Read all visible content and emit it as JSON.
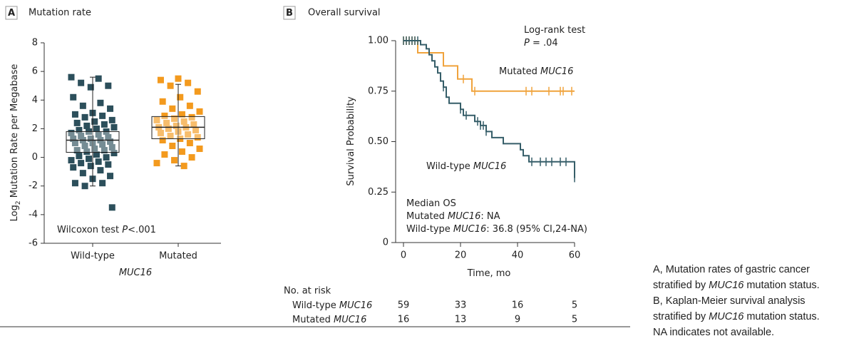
{
  "chart_data": [
    {
      "type": "box-strip",
      "panel": "A",
      "title": "Mutation rate",
      "ylabel": [
        {
          "text": "Log"
        },
        {
          "text": "2",
          "sub": true
        },
        {
          "text": " Mutation Rate per Megabase"
        }
      ],
      "xlabel": [
        {
          "text": "MUC16",
          "italic": true
        }
      ],
      "annotation": [
        {
          "text": "Wilcoxon test "
        },
        {
          "text": "P",
          "italic": true
        },
        {
          "text": "<.001"
        }
      ],
      "categories": [
        "Wild-type",
        "Mutated"
      ],
      "ylim": [
        -6,
        8
      ],
      "yticks": [
        -6,
        -4,
        -2,
        0,
        2,
        4,
        6,
        8
      ],
      "series": [
        {
          "name": "Wild-type",
          "color": "#2c4f5b",
          "values": [
            5.6,
            5.5,
            5.2,
            5.0,
            4.9,
            4.2,
            3.8,
            3.6,
            3.4,
            3.1,
            3.0,
            2.9,
            2.8,
            2.6,
            2.5,
            2.4,
            2.3,
            2.2,
            2.1,
            2.0,
            1.9,
            1.8,
            1.8,
            1.7,
            1.6,
            1.5,
            1.4,
            1.3,
            1.3,
            1.2,
            1.2,
            1.1,
            1.0,
            1.0,
            0.9,
            0.8,
            0.7,
            0.6,
            0.5,
            0.5,
            0.4,
            0.3,
            0.2,
            0.1,
            0.0,
            -0.1,
            -0.2,
            -0.3,
            -0.4,
            -0.5,
            -0.6,
            -0.7,
            -0.9,
            -1.1,
            -1.3,
            -1.5,
            -1.8,
            -1.8,
            -2.0,
            -3.5
          ],
          "box": {
            "min": -2.0,
            "q1": 0.35,
            "median": 1.2,
            "q3": 1.8,
            "max": 5.6
          }
        },
        {
          "name": "Mutated",
          "color": "#f39a1e",
          "values": [
            5.5,
            5.4,
            5.2,
            5.0,
            4.6,
            4.2,
            3.9,
            3.6,
            3.4,
            3.2,
            3.0,
            2.9,
            2.8,
            2.7,
            2.6,
            2.5,
            2.4,
            2.3,
            2.2,
            2.1,
            2.1,
            2.0,
            1.9,
            1.8,
            1.7,
            1.6,
            1.5,
            1.4,
            1.3,
            1.2,
            1.0,
            0.8,
            0.6,
            0.4,
            0.2,
            0.0,
            -0.2,
            -0.4,
            -0.6
          ],
          "box": {
            "min": -0.6,
            "q1": 1.3,
            "median": 2.1,
            "q3": 2.85,
            "max": 5.1
          }
        }
      ]
    },
    {
      "type": "km",
      "panel": "B",
      "title": "Overall survival",
      "ylabel": [
        {
          "text": "Survival Probability"
        }
      ],
      "xlabel": [
        {
          "text": "Time, mo"
        }
      ],
      "xlim": [
        0,
        60
      ],
      "xticks": [
        0,
        20,
        40,
        60
      ],
      "ylim": [
        0,
        1
      ],
      "yticks": [
        0,
        0.25,
        {
          "value": 0.5,
          "label": "0.50"
        },
        0.75,
        {
          "value": 1,
          "label": "1.00"
        }
      ],
      "test": [
        [
          {
            "text": "Log-rank test"
          }
        ],
        [
          {
            "text": "P",
            "italic": true
          },
          {
            "text": " = .04"
          }
        ]
      ],
      "median_os": [
        [
          {
            "text": "Median OS"
          }
        ],
        [
          {
            "text": "Mutated "
          },
          {
            "text": "MUC16",
            "italic": true
          },
          {
            "text": ": NA"
          }
        ],
        [
          {
            "text": "Wild-type "
          },
          {
            "text": "MUC16",
            "italic": true
          },
          {
            "text": ": 36.8 (95% CI,24-NA)"
          }
        ]
      ],
      "series": [
        {
          "name": [
            {
              "text": "Mutated "
            },
            {
              "text": "MUC16",
              "italic": true
            }
          ],
          "color": "#f0a33c",
          "x": [
            0,
            5,
            14,
            19,
            24,
            60
          ],
          "values": [
            1.0,
            0.94,
            0.875,
            0.81,
            0.75,
            0.75
          ],
          "censored_x": [
            0,
            1,
            2,
            3,
            4,
            21,
            25,
            43,
            45,
            51,
            55,
            56,
            59
          ],
          "censored_y": [
            1.0,
            1.0,
            1.0,
            1.0,
            1.0,
            0.81,
            0.75,
            0.75,
            0.75,
            0.75,
            0.75,
            0.75,
            0.75
          ]
        },
        {
          "name": [
            {
              "text": "Wild-type "
            },
            {
              "text": "MUC16",
              "italic": true
            }
          ],
          "color": "#365e69",
          "x": [
            0,
            6,
            8,
            9,
            10,
            11,
            12,
            13,
            14,
            15,
            16,
            20,
            21,
            25,
            27,
            29,
            31,
            35,
            41,
            42,
            44,
            60
          ],
          "values": [
            1.0,
            0.98,
            0.96,
            0.93,
            0.9,
            0.87,
            0.84,
            0.8,
            0.77,
            0.72,
            0.69,
            0.66,
            0.63,
            0.6,
            0.58,
            0.55,
            0.52,
            0.49,
            0.46,
            0.43,
            0.4,
            0.32
          ],
          "censored_x": [
            0,
            1,
            2,
            3,
            4,
            5,
            14,
            20,
            22,
            26,
            27,
            28,
            29,
            45,
            48,
            50,
            52,
            55,
            57,
            60
          ],
          "censored_y": [
            1.0,
            1.0,
            1.0,
            1.0,
            1.0,
            1.0,
            0.77,
            0.66,
            0.63,
            0.6,
            0.58,
            0.58,
            0.55,
            0.4,
            0.4,
            0.4,
            0.4,
            0.4,
            0.4,
            0.32
          ]
        }
      ],
      "risk_table": {
        "title": "No. at risk",
        "rows": [
          {
            "label": [
              {
                "text": "Wild-type "
              },
              {
                "text": "MUC16",
                "italic": true
              }
            ],
            "values": [
              59,
              33,
              16,
              5
            ]
          },
          {
            "label": [
              {
                "text": "Mutated "
              },
              {
                "text": "MUC16",
                "italic": true
              }
            ],
            "values": [
              16,
              13,
              9,
              5
            ]
          }
        ]
      }
    }
  ],
  "caption": [
    [
      {
        "text": "A, Mutation rates of gastric cancer"
      }
    ],
    [
      {
        "text": "stratified by "
      },
      {
        "text": "MUC16",
        "italic": true
      },
      {
        "text": " mutation status."
      }
    ],
    [
      {
        "text": "B, Kaplan-Meier survival analysis"
      }
    ],
    [
      {
        "text": "stratified by "
      },
      {
        "text": "MUC16",
        "italic": true
      },
      {
        "text": " mutation status."
      }
    ],
    [
      {
        "text": "NA indicates not available."
      }
    ]
  ]
}
